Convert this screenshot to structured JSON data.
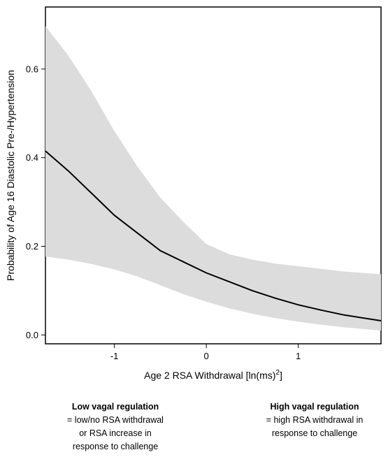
{
  "chart_data": {
    "type": "line",
    "xlabel": "Age 2 RSA Withdrawal [ln(ms)",
    "xlabel_superscript": "2",
    "xlabel_suffix": "]",
    "ylabel": "Probability of Age 16 Diastolic Pre-/Hypertension",
    "xlim": [
      -1.75,
      1.9
    ],
    "ylim": [
      -0.02,
      0.74
    ],
    "x_ticks": [
      -1,
      0,
      1
    ],
    "x_tick_labels": [
      "-1",
      "0",
      "1"
    ],
    "y_ticks": [
      0.0,
      0.2,
      0.4,
      0.6
    ],
    "y_tick_labels": [
      "0.0",
      "0.2",
      "0.4",
      "0.6"
    ],
    "grid": false,
    "series": [
      {
        "line_color": "#000000",
        "band_color": "#dcdcdc",
        "x": [
          -1.75,
          -1.5,
          -1.25,
          -1.0,
          -0.75,
          -0.5,
          -0.25,
          0.0,
          0.25,
          0.5,
          0.75,
          1.0,
          1.25,
          1.5,
          1.9
        ],
        "y": [
          0.415,
          0.37,
          0.32,
          0.27,
          0.23,
          0.19,
          0.165,
          0.14,
          0.12,
          0.1,
          0.083,
          0.068,
          0.056,
          0.045,
          0.032
        ],
        "lower": [
          0.177,
          0.17,
          0.16,
          0.148,
          0.132,
          0.112,
          0.092,
          0.075,
          0.06,
          0.048,
          0.038,
          0.03,
          0.023,
          0.017,
          0.01
        ],
        "upper": [
          0.697,
          0.63,
          0.55,
          0.46,
          0.38,
          0.31,
          0.255,
          0.205,
          0.182,
          0.17,
          0.161,
          0.155,
          0.149,
          0.143,
          0.137
        ]
      }
    ]
  },
  "notes": {
    "left": {
      "heading": "Low vagal regulation",
      "line1": "= low/no RSA withdrawal",
      "line2": "or RSA increase in",
      "line3": "response to challenge"
    },
    "right": {
      "heading": "High vagal regulation",
      "line1": "= high RSA withdrawal in",
      "line2": "response to challenge"
    }
  }
}
